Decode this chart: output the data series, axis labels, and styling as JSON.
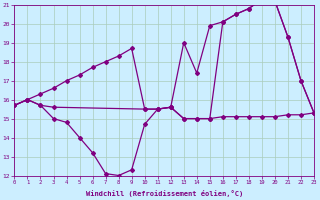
{
  "xlabel": "Windchill (Refroidissement éolien,°C)",
  "bg_color": "#cceeff",
  "line_color": "#800080",
  "grid_color": "#aaccbb",
  "xmin": 0,
  "xmax": 23,
  "ymin": 12,
  "ymax": 21,
  "line_dip_x": [
    0,
    1,
    2,
    3,
    4,
    5,
    6,
    7,
    8,
    9,
    10,
    11,
    12,
    13,
    14,
    15,
    16,
    17,
    18,
    19,
    20,
    21,
    22,
    23
  ],
  "line_dip_y": [
    15.7,
    16.0,
    15.7,
    15.0,
    14.8,
    14.0,
    13.2,
    12.1,
    12.0,
    12.3,
    14.7,
    15.5,
    15.6,
    15.0,
    15.0,
    15.0,
    15.1,
    15.1,
    15.1,
    15.1,
    15.1,
    15.2,
    15.2,
    15.3
  ],
  "line_upper_x": [
    0,
    1,
    2,
    3,
    4,
    5,
    6,
    7,
    8,
    9,
    10,
    11,
    12,
    13,
    14,
    15,
    16,
    17,
    18,
    19,
    20,
    21,
    22,
    23
  ],
  "line_upper_y": [
    15.7,
    16.0,
    16.3,
    16.6,
    17.0,
    17.3,
    17.7,
    18.0,
    18.3,
    18.7,
    15.5,
    15.5,
    15.6,
    19.0,
    17.4,
    19.9,
    20.1,
    20.5,
    20.8,
    21.3,
    21.2,
    19.3,
    17.0,
    15.3
  ],
  "line_mid_x": [
    0,
    1,
    2,
    3,
    10,
    11,
    12,
    13,
    14,
    15,
    16,
    17,
    18,
    19,
    20,
    21,
    22,
    23
  ],
  "line_mid_y": [
    15.7,
    16.0,
    15.7,
    15.6,
    15.5,
    15.5,
    15.6,
    15.0,
    15.0,
    15.0,
    20.1,
    20.5,
    20.8,
    21.3,
    21.2,
    19.3,
    17.0,
    15.3
  ]
}
